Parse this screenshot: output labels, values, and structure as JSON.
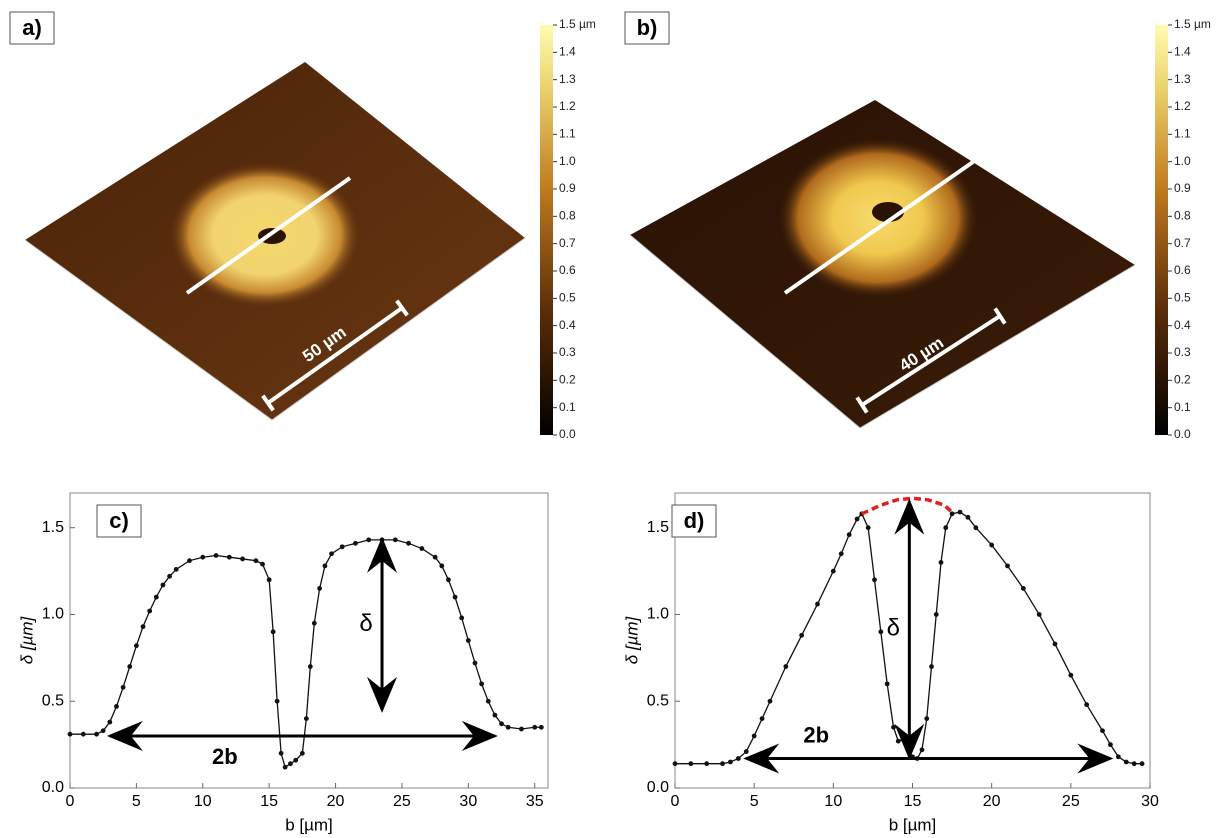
{
  "chart_data": [
    {
      "type": "surface",
      "label": "a)",
      "scale_bar": "50 µm",
      "colorbar_lim": [
        0,
        1.5
      ],
      "colorbar_ticks": [
        {
          "value": 0,
          "label": "0.0"
        },
        0.1,
        0.2,
        0.3,
        0.4,
        0.5,
        0.6,
        0.7,
        0.8,
        0.9,
        {
          "value": 1,
          "label": "1.0"
        },
        1.1,
        1.2,
        1.3,
        1.4,
        {
          "value": 1.5,
          "label": "1.5 µm"
        }
      ]
    },
    {
      "type": "surface",
      "label": "b)",
      "scale_bar": "40 µm",
      "colorbar_lim": [
        0,
        1.5
      ],
      "colorbar_ticks": [
        {
          "value": 0,
          "label": "0.0"
        },
        0.1,
        0.2,
        0.3,
        0.4,
        0.5,
        0.6,
        0.7,
        0.8,
        0.9,
        {
          "value": 1,
          "label": "1.0"
        },
        1.1,
        1.2,
        1.3,
        1.4,
        {
          "value": 1.5,
          "label": "1.5 µm"
        }
      ]
    },
    {
      "type": "line",
      "label": "c)",
      "x_label": "b [µm]",
      "y_label": "δ [µm]",
      "xlim": [
        0,
        36
      ],
      "ylim": [
        0,
        1.7
      ],
      "xticks": [
        0,
        5,
        10,
        15,
        20,
        25,
        30,
        35
      ],
      "yticks": [
        {
          "value": 0,
          "label": "0.0"
        },
        0.5,
        {
          "value": 1,
          "label": "1.0"
        },
        1.5
      ],
      "annotations": [
        "δ",
        "2b"
      ],
      "series": [
        {
          "color": "#111111",
          "x": [
            0,
            1,
            2,
            2.5,
            3,
            3.5,
            4,
            4.5,
            5,
            5.5,
            6,
            6.5,
            7,
            7.5,
            8,
            9,
            10,
            11,
            12,
            13,
            14,
            14.5,
            15,
            15.3,
            15.6,
            15.9,
            16.2,
            16.6,
            17,
            17.5,
            17.8,
            18.1,
            18.4,
            18.8,
            19.2,
            19.7,
            20.5,
            21.5,
            22.5,
            23.5,
            24.5,
            25.5,
            26.5,
            27.5,
            28,
            28.5,
            29,
            29.5,
            30,
            30.5,
            31,
            31.5,
            32,
            32.5,
            33,
            34,
            35,
            35.5
          ],
          "values": [
            0.31,
            0.31,
            0.31,
            0.33,
            0.38,
            0.47,
            0.58,
            0.7,
            0.82,
            0.93,
            1.02,
            1.1,
            1.17,
            1.22,
            1.26,
            1.31,
            1.33,
            1.34,
            1.33,
            1.32,
            1.31,
            1.29,
            1.2,
            0.9,
            0.5,
            0.2,
            0.12,
            0.14,
            0.16,
            0.2,
            0.4,
            0.7,
            0.95,
            1.15,
            1.28,
            1.35,
            1.39,
            1.41,
            1.43,
            1.43,
            1.43,
            1.41,
            1.38,
            1.33,
            1.28,
            1.2,
            1.1,
            0.98,
            0.85,
            0.72,
            0.6,
            0.5,
            0.42,
            0.37,
            0.35,
            0.34,
            0.35,
            0.35
          ]
        }
      ]
    },
    {
      "type": "line",
      "label": "d)",
      "x_label": "b [µm]",
      "y_label": "δ [µm]",
      "xlim": [
        0,
        30
      ],
      "ylim": [
        0,
        1.7
      ],
      "xticks": [
        0,
        5,
        10,
        15,
        20,
        25,
        30
      ],
      "yticks": [
        {
          "value": 0,
          "label": "0.0"
        },
        0.5,
        {
          "value": 1,
          "label": "1.0"
        },
        1.5
      ],
      "annotations": [
        "δ",
        "2b"
      ],
      "series": [
        {
          "color": "#111111",
          "x": [
            0,
            1,
            2,
            3,
            3.5,
            4,
            4.5,
            5,
            5.5,
            6,
            7,
            8,
            9,
            10,
            10.5,
            11,
            11.5,
            11.8,
            12.2,
            12.6,
            13,
            13.4,
            13.8,
            14.1,
            14.4,
            14.7,
            15,
            15.3,
            15.6,
            15.9,
            16.2,
            16.5,
            16.8,
            17.1,
            17.5,
            18,
            18.5,
            19,
            20,
            21,
            22,
            23,
            24,
            25,
            26,
            27,
            27.5,
            28,
            28.5,
            29,
            29.5
          ],
          "values": [
            0.14,
            0.14,
            0.14,
            0.14,
            0.15,
            0.17,
            0.21,
            0.3,
            0.4,
            0.5,
            0.7,
            0.88,
            1.06,
            1.25,
            1.35,
            1.46,
            1.55,
            1.58,
            1.5,
            1.2,
            0.9,
            0.6,
            0.35,
            0.27,
            0.28,
            0.22,
            0.18,
            0.17,
            0.22,
            0.4,
            0.7,
            1.0,
            1.3,
            1.5,
            1.58,
            1.59,
            1.56,
            1.5,
            1.4,
            1.28,
            1.15,
            1.0,
            0.83,
            0.65,
            0.48,
            0.33,
            0.25,
            0.18,
            0.15,
            0.14,
            0.14
          ]
        },
        {
          "color": "#e02020",
          "dashed": true,
          "x": [
            11.8,
            13,
            14,
            15,
            16,
            17,
            17.5
          ],
          "values": [
            1.58,
            1.63,
            1.66,
            1.67,
            1.66,
            1.63,
            1.59
          ]
        }
      ]
    }
  ]
}
